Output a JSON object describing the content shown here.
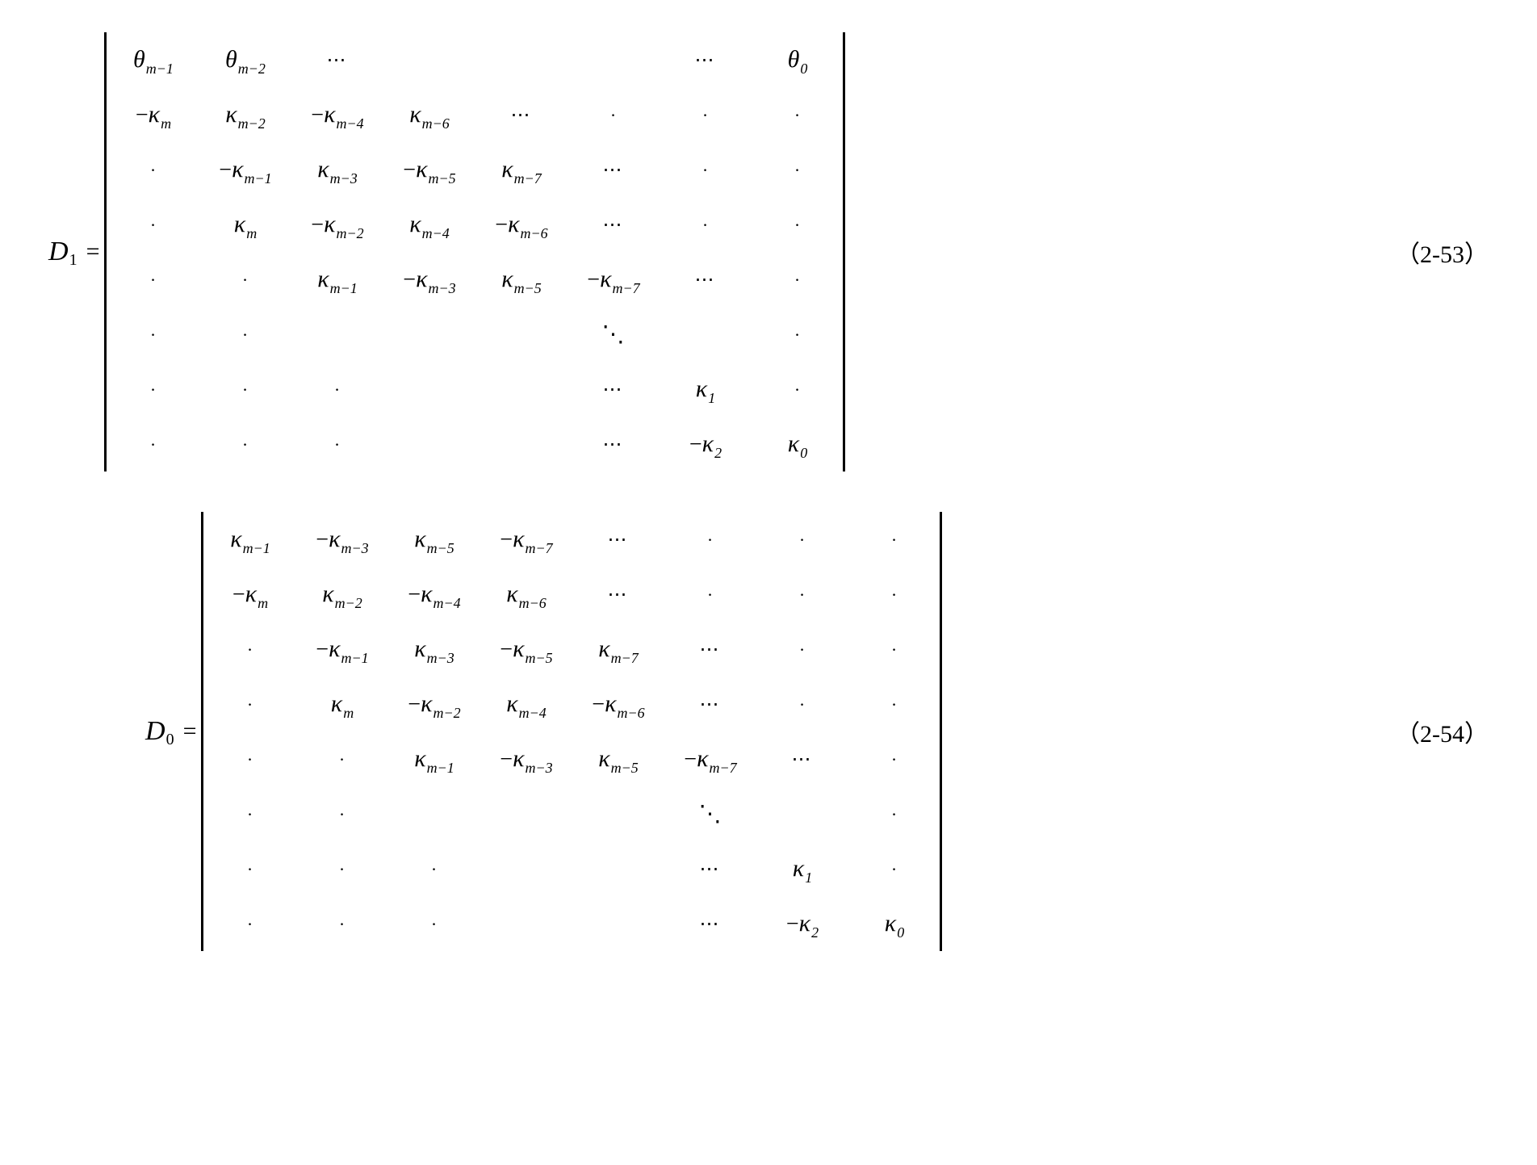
{
  "typography": {
    "base_font": "Times New Roman",
    "base_fontsize_pt": 28,
    "lhs_var_fontsize_pt": 34,
    "subscript_fontsize_pt": 18,
    "text_color": "#000000",
    "background_color": "#ffffff"
  },
  "eq1": {
    "lhs_var": "D",
    "lhs_sub": "1",
    "equals": "=",
    "number": "（2-53）",
    "matrix": {
      "nrows": 8,
      "ncols": 8,
      "cells": [
        [
          {
            "sym": "θ",
            "sub": "m−1",
            "neg": false
          },
          {
            "sym": "θ",
            "sub": "m−2",
            "neg": false
          },
          {
            "text": "⋯"
          },
          {
            "text": ""
          },
          {
            "text": ""
          },
          {
            "text": ""
          },
          {
            "text": "⋯"
          },
          {
            "sym": "θ",
            "sub": "0",
            "neg": false
          }
        ],
        [
          {
            "sym": "κ",
            "sub": "m",
            "neg": true
          },
          {
            "sym": "κ",
            "sub": "m−2",
            "neg": false
          },
          {
            "sym": "κ",
            "sub": "m−4",
            "neg": true
          },
          {
            "sym": "κ",
            "sub": "m−6",
            "neg": false
          },
          {
            "text": "⋯"
          },
          {
            "text": "·"
          },
          {
            "text": "·"
          },
          {
            "text": "·"
          }
        ],
        [
          {
            "text": "·"
          },
          {
            "sym": "κ",
            "sub": "m−1",
            "neg": true
          },
          {
            "sym": "κ",
            "sub": "m−3",
            "neg": false
          },
          {
            "sym": "κ",
            "sub": "m−5",
            "neg": true
          },
          {
            "sym": "κ",
            "sub": "m−7",
            "neg": false
          },
          {
            "text": "⋯"
          },
          {
            "text": "·"
          },
          {
            "text": "·"
          }
        ],
        [
          {
            "text": "·"
          },
          {
            "sym": "κ",
            "sub": "m",
            "neg": false
          },
          {
            "sym": "κ",
            "sub": "m−2",
            "neg": true
          },
          {
            "sym": "κ",
            "sub": "m−4",
            "neg": false
          },
          {
            "sym": "κ",
            "sub": "m−6",
            "neg": true
          },
          {
            "text": "⋯"
          },
          {
            "text": "·"
          },
          {
            "text": "·"
          }
        ],
        [
          {
            "text": "·"
          },
          {
            "text": "·"
          },
          {
            "sym": "κ",
            "sub": "m−1",
            "neg": false
          },
          {
            "sym": "κ",
            "sub": "m−3",
            "neg": true
          },
          {
            "sym": "κ",
            "sub": "m−5",
            "neg": false
          },
          {
            "sym": "κ",
            "sub": "m−7",
            "neg": true
          },
          {
            "text": "⋯"
          },
          {
            "text": "·"
          }
        ],
        [
          {
            "text": "·"
          },
          {
            "text": "·"
          },
          {
            "text": ""
          },
          {
            "text": ""
          },
          {
            "text": ""
          },
          {
            "text": "⋱"
          },
          {
            "text": ""
          },
          {
            "text": "·"
          }
        ],
        [
          {
            "text": "·"
          },
          {
            "text": "·"
          },
          {
            "text": "·"
          },
          {
            "text": ""
          },
          {
            "text": ""
          },
          {
            "text": "⋯"
          },
          {
            "sym": "κ",
            "sub": "1",
            "neg": false
          },
          {
            "text": "·"
          }
        ],
        [
          {
            "text": "·"
          },
          {
            "text": "·"
          },
          {
            "text": "·"
          },
          {
            "text": ""
          },
          {
            "text": ""
          },
          {
            "text": "⋯"
          },
          {
            "sym": "κ",
            "sub": "2",
            "neg": true
          },
          {
            "sym": "κ",
            "sub": "0",
            "neg": false
          }
        ]
      ]
    }
  },
  "eq2": {
    "lhs_var": "D",
    "lhs_sub": "0",
    "equals": "=",
    "number": "（2-54）",
    "matrix": {
      "nrows": 8,
      "ncols": 8,
      "cells": [
        [
          {
            "sym": "κ",
            "sub": "m−1",
            "neg": false
          },
          {
            "sym": "κ",
            "sub": "m−3",
            "neg": true
          },
          {
            "sym": "κ",
            "sub": "m−5",
            "neg": false
          },
          {
            "sym": "κ",
            "sub": "m−7",
            "neg": true
          },
          {
            "text": "⋯"
          },
          {
            "text": "·"
          },
          {
            "text": "·"
          },
          {
            "text": "·"
          }
        ],
        [
          {
            "sym": "κ",
            "sub": "m",
            "neg": true
          },
          {
            "sym": "κ",
            "sub": "m−2",
            "neg": false
          },
          {
            "sym": "κ",
            "sub": "m−4",
            "neg": true
          },
          {
            "sym": "κ",
            "sub": "m−6",
            "neg": false
          },
          {
            "text": "⋯"
          },
          {
            "text": "·"
          },
          {
            "text": "·"
          },
          {
            "text": "·"
          }
        ],
        [
          {
            "text": "·"
          },
          {
            "sym": "κ",
            "sub": "m−1",
            "neg": true
          },
          {
            "sym": "κ",
            "sub": "m−3",
            "neg": false
          },
          {
            "sym": "κ",
            "sub": "m−5",
            "neg": true
          },
          {
            "sym": "κ",
            "sub": "m−7",
            "neg": false
          },
          {
            "text": "⋯"
          },
          {
            "text": "·"
          },
          {
            "text": "·"
          }
        ],
        [
          {
            "text": "·"
          },
          {
            "sym": "κ",
            "sub": "m",
            "neg": false
          },
          {
            "sym": "κ",
            "sub": "m−2",
            "neg": true
          },
          {
            "sym": "κ",
            "sub": "m−4",
            "neg": false
          },
          {
            "sym": "κ",
            "sub": "m−6",
            "neg": true
          },
          {
            "text": "⋯"
          },
          {
            "text": "·"
          },
          {
            "text": "·"
          }
        ],
        [
          {
            "text": "·"
          },
          {
            "text": "·"
          },
          {
            "sym": "κ",
            "sub": "m−1",
            "neg": false
          },
          {
            "sym": "κ",
            "sub": "m−3",
            "neg": true
          },
          {
            "sym": "κ",
            "sub": "m−5",
            "neg": false
          },
          {
            "sym": "κ",
            "sub": "m−7",
            "neg": true
          },
          {
            "text": "⋯"
          },
          {
            "text": "·"
          }
        ],
        [
          {
            "text": "·"
          },
          {
            "text": "·"
          },
          {
            "text": ""
          },
          {
            "text": ""
          },
          {
            "text": ""
          },
          {
            "text": "⋱"
          },
          {
            "text": ""
          },
          {
            "text": "·"
          }
        ],
        [
          {
            "text": "·"
          },
          {
            "text": "·"
          },
          {
            "text": "·"
          },
          {
            "text": ""
          },
          {
            "text": ""
          },
          {
            "text": "⋯"
          },
          {
            "sym": "κ",
            "sub": "1",
            "neg": false
          },
          {
            "text": "·"
          }
        ],
        [
          {
            "text": "·"
          },
          {
            "text": "·"
          },
          {
            "text": "·"
          },
          {
            "text": ""
          },
          {
            "text": ""
          },
          {
            "text": "⋯"
          },
          {
            "sym": "κ",
            "sub": "2",
            "neg": true
          },
          {
            "sym": "κ",
            "sub": "0",
            "neg": false
          }
        ]
      ]
    }
  }
}
